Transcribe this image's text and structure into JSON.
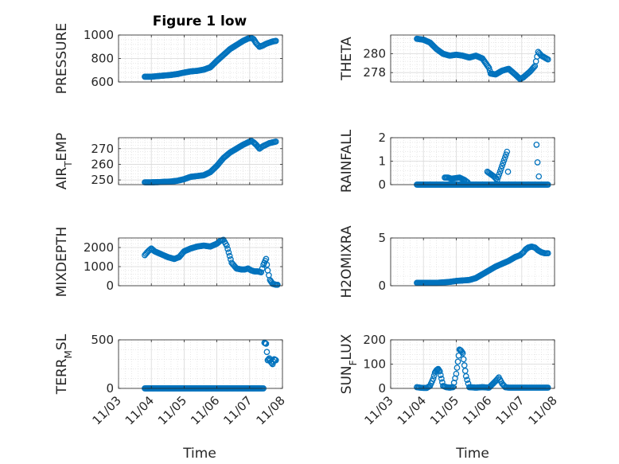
{
  "figure": {
    "title": "Figure 1 low",
    "xlabel": "Time",
    "xticks": [
      "11/03",
      "11/04",
      "11/05",
      "11/06",
      "11/07",
      "11/08"
    ],
    "marker_color": "#0072BD",
    "grid_color": "#d9d9d9",
    "axes_color": "#262626"
  },
  "chart_data": [
    {
      "type": "scatter",
      "ylabel": "PRESSURE",
      "xlim": [
        0,
        5
      ],
      "ylim": [
        600,
        1000
      ],
      "yticks": [
        600,
        800,
        1000
      ],
      "grid": "on",
      "x": [
        0.8,
        1.0,
        1.2,
        1.4,
        1.6,
        1.8,
        2.0,
        2.2,
        2.4,
        2.6,
        2.8,
        3.0,
        3.2,
        3.4,
        3.6,
        3.8,
        3.95,
        4.05,
        4.12,
        4.2,
        4.3,
        4.4,
        4.5,
        4.6,
        4.7,
        4.8
      ],
      "values": [
        645,
        645,
        650,
        655,
        660,
        668,
        680,
        690,
        695,
        705,
        725,
        780,
        830,
        880,
        915,
        950,
        970,
        975,
        965,
        930,
        900,
        910,
        925,
        935,
        945,
        950
      ]
    },
    {
      "type": "scatter",
      "ylabel": "THETA",
      "xlim": [
        0,
        5
      ],
      "ylim": [
        277,
        282
      ],
      "yticks": [
        278,
        280
      ],
      "grid": "on",
      "x": [
        0.8,
        1.0,
        1.2,
        1.4,
        1.6,
        1.8,
        2.0,
        2.2,
        2.4,
        2.6,
        2.8,
        3.0,
        3.05,
        3.2,
        3.4,
        3.6,
        3.8,
        3.95,
        4.05,
        4.15,
        4.25,
        4.4,
        4.5,
        4.6,
        4.7,
        4.8
      ],
      "values": [
        281.6,
        281.5,
        281.2,
        280.5,
        280.0,
        279.8,
        279.9,
        279.8,
        279.6,
        279.8,
        279.5,
        278.5,
        277.9,
        277.8,
        278.2,
        278.4,
        277.8,
        277.3,
        277.5,
        277.8,
        278.1,
        278.7,
        280.2,
        279.8,
        279.6,
        279.4
      ]
    },
    {
      "type": "scatter",
      "ylabel": "AIR_TEMP",
      "xlim": [
        0,
        5
      ],
      "ylim": [
        247,
        277
      ],
      "yticks": [
        250,
        260,
        270
      ],
      "grid": "on",
      "x": [
        0.8,
        1.0,
        1.2,
        1.4,
        1.6,
        1.8,
        2.0,
        2.2,
        2.4,
        2.6,
        2.8,
        3.0,
        3.2,
        3.4,
        3.6,
        3.8,
        3.95,
        4.05,
        4.12,
        4.2,
        4.3,
        4.4,
        4.5,
        4.6,
        4.7,
        4.8
      ],
      "values": [
        248.5,
        248.5,
        248.6,
        248.8,
        249,
        249.5,
        250.5,
        252,
        252.5,
        253,
        255,
        259,
        264,
        267.5,
        270,
        272.5,
        274,
        275,
        274,
        272.5,
        270,
        271.5,
        272.5,
        273.5,
        274,
        274.5
      ]
    },
    {
      "type": "scatter",
      "ylabel": "RAINFALL",
      "xlim": [
        0,
        5
      ],
      "ylim": [
        0,
        2
      ],
      "yticks": [
        0,
        1,
        2
      ],
      "grid": "on",
      "x": [
        0.8,
        1.0,
        1.2,
        1.4,
        1.6,
        1.8,
        2.0,
        2.2,
        2.4,
        2.6,
        2.8,
        3.0,
        3.1,
        3.2,
        3.4,
        3.6,
        3.8,
        4.0,
        4.1,
        4.2,
        4.3,
        4.4,
        4.5,
        4.6,
        4.7,
        4.8,
        1.65,
        1.75,
        1.85,
        2.1,
        2.25,
        2.35,
        2.95,
        3.05,
        3.15,
        3.25,
        3.55,
        3.58,
        4.45,
        4.48,
        4.52
      ],
      "values": [
        0,
        0,
        0,
        0,
        0,
        0,
        0,
        0,
        0,
        0,
        0,
        0,
        0,
        0,
        0,
        0,
        0,
        0,
        0,
        0,
        0,
        0,
        0,
        0,
        0,
        0,
        0.3,
        0.3,
        0.25,
        0.3,
        0.2,
        0.1,
        0.55,
        0.45,
        0.35,
        0.2,
        1.4,
        0.55,
        1.7,
        0.95,
        0.35
      ]
    },
    {
      "type": "scatter",
      "ylabel": "MIXDEPTH",
      "xlim": [
        0,
        5
      ],
      "ylim": [
        0,
        2500
      ],
      "yticks": [
        0,
        1000,
        2000
      ],
      "grid": "on",
      "x": [
        0.8,
        0.9,
        1.0,
        1.1,
        1.3,
        1.5,
        1.7,
        1.85,
        2.0,
        2.2,
        2.4,
        2.6,
        2.8,
        3.0,
        3.1,
        3.2,
        3.3,
        3.45,
        3.6,
        3.75,
        3.85,
        3.95,
        4.05,
        4.15,
        4.25,
        4.35,
        4.42,
        4.5,
        4.55,
        4.62,
        4.7,
        4.8,
        4.85
      ],
      "values": [
        1600,
        1800,
        1950,
        1800,
        1650,
        1500,
        1400,
        1500,
        1800,
        1950,
        2050,
        2100,
        2050,
        2200,
        2350,
        2400,
        2100,
        1200,
        900,
        850,
        850,
        900,
        800,
        750,
        750,
        700,
        1100,
        1400,
        800,
        300,
        100,
        50,
        50
      ]
    },
    {
      "type": "scatter",
      "ylabel": "H2OMIXRA",
      "xlim": [
        0,
        5
      ],
      "ylim": [
        0,
        5
      ],
      "yticks": [
        0,
        5
      ],
      "grid": "on",
      "x": [
        0.8,
        1.0,
        1.2,
        1.4,
        1.6,
        1.8,
        2.0,
        2.2,
        2.4,
        2.6,
        2.8,
        3.0,
        3.2,
        3.4,
        3.6,
        3.8,
        3.95,
        4.05,
        4.12,
        4.2,
        4.3,
        4.4,
        4.5,
        4.6,
        4.7,
        4.8
      ],
      "values": [
        0.3,
        0.3,
        0.3,
        0.3,
        0.35,
        0.4,
        0.5,
        0.55,
        0.6,
        0.8,
        1.2,
        1.6,
        2.0,
        2.3,
        2.6,
        3.0,
        3.2,
        3.5,
        3.8,
        4.0,
        4.1,
        4.0,
        3.7,
        3.5,
        3.4,
        3.4
      ]
    },
    {
      "type": "scatter",
      "ylabel": "TERR_MSL",
      "xlim": [
        0,
        5
      ],
      "ylim": [
        0,
        500
      ],
      "yticks": [
        0,
        500
      ],
      "grid": "on",
      "x": [
        0.8,
        1.0,
        1.2,
        1.4,
        1.6,
        1.8,
        2.0,
        2.2,
        2.4,
        2.6,
        2.8,
        3.0,
        3.2,
        3.4,
        3.6,
        3.8,
        4.0,
        4.2,
        4.35,
        4.42,
        4.45,
        4.5,
        4.55,
        4.6,
        4.65,
        4.7,
        4.75,
        4.8
      ],
      "values": [
        0,
        0,
        0,
        0,
        0,
        0,
        0,
        0,
        0,
        0,
        0,
        0,
        0,
        0,
        0,
        0,
        0,
        0,
        0,
        0,
        470,
        460,
        290,
        310,
        270,
        250,
        300,
        290
      ]
    },
    {
      "type": "scatter",
      "ylabel": "SUN_FLUX",
      "xlim": [
        0,
        5
      ],
      "ylim": [
        0,
        200
      ],
      "yticks": [
        0,
        100,
        200
      ],
      "grid": "on",
      "x": [
        0.8,
        0.9,
        1.0,
        1.1,
        1.2,
        1.3,
        1.35,
        1.4,
        1.45,
        1.5,
        1.55,
        1.6,
        1.7,
        1.8,
        1.9,
        2.0,
        2.05,
        2.1,
        2.15,
        2.2,
        2.25,
        2.3,
        2.4,
        2.6,
        2.8,
        3.0,
        3.2,
        3.3,
        3.4,
        3.5,
        3.6,
        3.8,
        4.0,
        4.2,
        4.4,
        4.6,
        4.8
      ],
      "values": [
        5,
        3,
        2,
        2,
        10,
        40,
        65,
        75,
        80,
        70,
        40,
        10,
        5,
        3,
        5,
        60,
        110,
        160,
        155,
        145,
        95,
        50,
        5,
        3,
        5,
        3,
        30,
        45,
        20,
        5,
        3,
        3,
        3,
        3,
        3,
        3,
        3
      ]
    }
  ]
}
